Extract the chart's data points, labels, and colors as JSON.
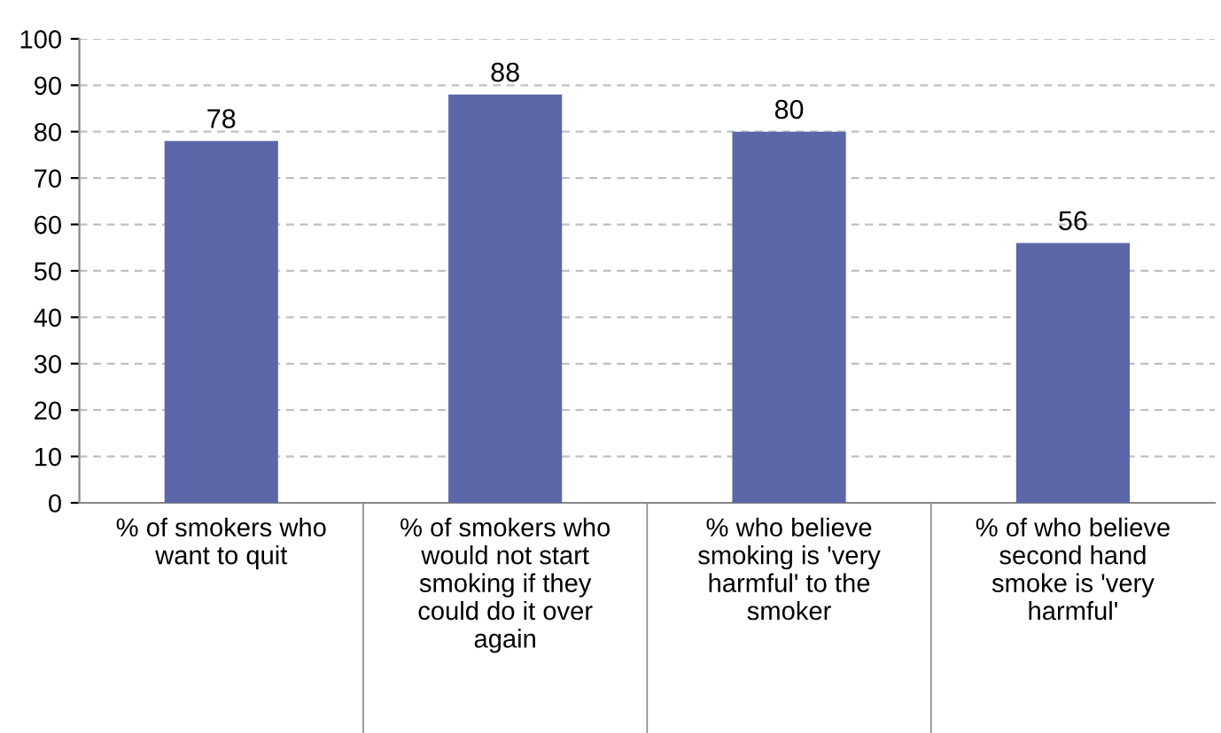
{
  "chart_data": {
    "type": "bar",
    "categories": [
      "% of smokers who\nwant to quit",
      "% of smokers who\nwould not start\nsmoking if they\ncould do it over\nagain",
      "% who believe\nsmoking is 'very\nharmful' to the\nsmoker",
      "% of who believe\nsecond hand\nsmoke is 'very\nharmful'"
    ],
    "values": [
      78,
      88,
      80,
      56
    ],
    "color": "#5b67a8",
    "ylim": [
      0,
      100
    ],
    "yticks": [
      0,
      10,
      20,
      30,
      40,
      50,
      60,
      70,
      80,
      90,
      100
    ],
    "grid": "y",
    "data_labels": true
  }
}
